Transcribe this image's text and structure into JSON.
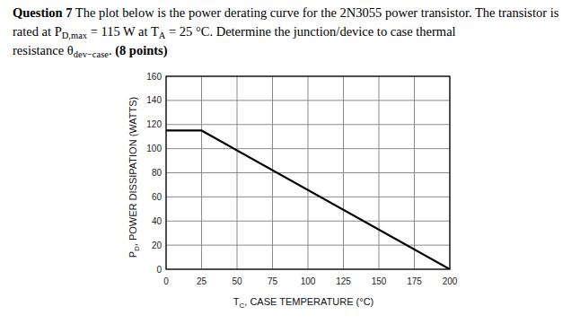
{
  "question": {
    "lines": [
      [
        {
          "text": "Question 7",
          "bold": true
        },
        {
          "text": " The plot below is the power derating curve for the 2N3055 power transistor. The transistor is"
        }
      ],
      [
        {
          "text": "rated at P"
        },
        {
          "text": "D,max",
          "sub": true
        },
        {
          "text": " = 115 W at T"
        },
        {
          "text": "A",
          "sub": true
        },
        {
          "text": " = 25 °C. Determine the junction/device to case thermal"
        }
      ],
      [
        {
          "text": "resistance θ"
        },
        {
          "text": "dev−case",
          "sub": true
        },
        {
          "text": ". "
        },
        {
          "text": "(8 points)",
          "bold": true
        }
      ]
    ]
  },
  "chart_data": {
    "type": "line",
    "x_label": "TC, CASE TEMPERATURE (°C)",
    "y_label": "PD, POWER DISSIPATION (WATTS)",
    "x": [
      0,
      25,
      200
    ],
    "values": [
      115,
      115,
      0
    ],
    "color": "#000000",
    "xlim": [
      0,
      200
    ],
    "xticks": [
      0,
      25,
      50,
      75,
      100,
      125,
      150,
      175,
      200
    ],
    "ylim": [
      0,
      160
    ],
    "yticks": [
      0,
      20,
      40,
      60,
      80,
      100,
      120,
      140,
      160
    ],
    "grid": true
  }
}
